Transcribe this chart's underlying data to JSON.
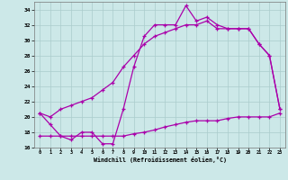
{
  "xlabel": "Windchill (Refroidissement éolien,°C)",
  "xlim": [
    -0.5,
    23.5
  ],
  "ylim": [
    16,
    35
  ],
  "yticks": [
    16,
    18,
    20,
    22,
    24,
    26,
    28,
    30,
    32,
    34
  ],
  "xticks": [
    0,
    1,
    2,
    3,
    4,
    5,
    6,
    7,
    8,
    9,
    10,
    11,
    12,
    13,
    14,
    15,
    16,
    17,
    18,
    19,
    20,
    21,
    22,
    23
  ],
  "background_color": "#cce8e8",
  "grid_color": "#aacccc",
  "line_color": "#aa00aa",
  "curve1_x": [
    0,
    1,
    2,
    3,
    4,
    5,
    6,
    7,
    8,
    9,
    10,
    11,
    12,
    13,
    14,
    15,
    16,
    17,
    18,
    19,
    20,
    21,
    22,
    23
  ],
  "curve1_y": [
    20.5,
    19.0,
    17.5,
    17.0,
    18.0,
    18.0,
    16.5,
    16.5,
    21.0,
    26.5,
    30.5,
    32.0,
    32.0,
    32.0,
    34.5,
    32.5,
    33.0,
    32.0,
    31.5,
    31.5,
    31.5,
    29.5,
    28.0,
    21.0
  ],
  "curve2_x": [
    0,
    1,
    2,
    3,
    4,
    5,
    6,
    7,
    8,
    9,
    10,
    11,
    12,
    13,
    14,
    15,
    16,
    17,
    18,
    19,
    20,
    21,
    22,
    23
  ],
  "curve2_y": [
    20.5,
    20.0,
    21.0,
    21.5,
    22.0,
    22.5,
    23.5,
    24.5,
    26.5,
    28.0,
    29.5,
    30.5,
    31.0,
    31.5,
    32.0,
    32.0,
    32.5,
    31.5,
    31.5,
    31.5,
    31.5,
    29.5,
    28.0,
    21.0
  ],
  "curve3_x": [
    0,
    1,
    2,
    3,
    4,
    5,
    6,
    7,
    8,
    9,
    10,
    11,
    12,
    13,
    14,
    15,
    16,
    17,
    18,
    19,
    20,
    21,
    22,
    23
  ],
  "curve3_y": [
    17.5,
    17.5,
    17.5,
    17.5,
    17.5,
    17.5,
    17.5,
    17.5,
    17.5,
    17.8,
    18.0,
    18.3,
    18.7,
    19.0,
    19.3,
    19.5,
    19.5,
    19.5,
    19.8,
    20.0,
    20.0,
    20.0,
    20.0,
    20.5
  ]
}
